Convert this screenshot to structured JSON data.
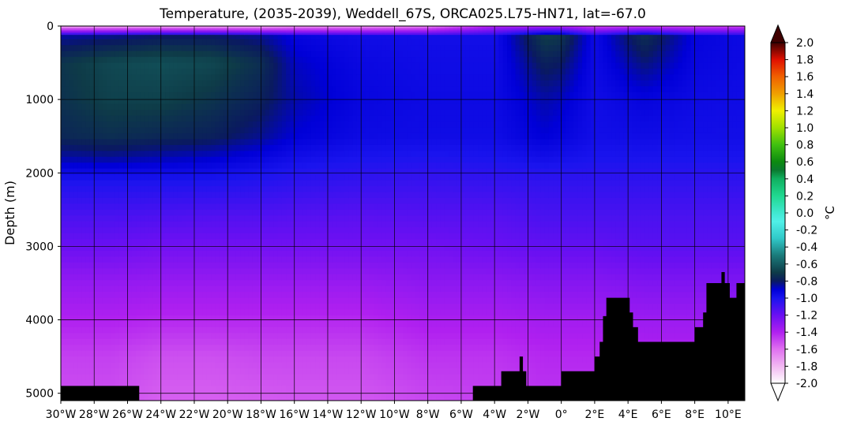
{
  "chart_data": {
    "type": "heatmap",
    "title": "Temperature, (2035-2039), Weddell_67S, ORCA025.L75-HN71, lat=-67.0",
    "xlabel": "",
    "ylabel": "Depth (m)",
    "colorbar_label": "°C",
    "xlim": [
      -30,
      11
    ],
    "ylim": [
      5100,
      0
    ],
    "y_inverted": true,
    "grid": true,
    "x_ticks": [
      {
        "value": -30,
        "label": "30°W"
      },
      {
        "value": -28,
        "label": "28°W"
      },
      {
        "value": -26,
        "label": "26°W"
      },
      {
        "value": -24,
        "label": "24°W"
      },
      {
        "value": -22,
        "label": "22°W"
      },
      {
        "value": -20,
        "label": "20°W"
      },
      {
        "value": -18,
        "label": "18°W"
      },
      {
        "value": -16,
        "label": "16°W"
      },
      {
        "value": -14,
        "label": "14°W"
      },
      {
        "value": -12,
        "label": "12°W"
      },
      {
        "value": -10,
        "label": "10°W"
      },
      {
        "value": -8,
        "label": "8°W"
      },
      {
        "value": -6,
        "label": "6°W"
      },
      {
        "value": -4,
        "label": "4°W"
      },
      {
        "value": -2,
        "label": "2°W"
      },
      {
        "value": 0,
        "label": "0°"
      },
      {
        "value": 2,
        "label": "2°E"
      },
      {
        "value": 4,
        "label": "4°E"
      },
      {
        "value": 6,
        "label": "6°E"
      },
      {
        "value": 8,
        "label": "8°E"
      },
      {
        "value": 10,
        "label": "10°E"
      }
    ],
    "y_ticks": [
      {
        "value": 0,
        "label": "0"
      },
      {
        "value": 1000,
        "label": "1000"
      },
      {
        "value": 2000,
        "label": "2000"
      },
      {
        "value": 3000,
        "label": "3000"
      },
      {
        "value": 4000,
        "label": "4000"
      },
      {
        "value": 5000,
        "label": "5000"
      }
    ],
    "colorbar": {
      "min": -2.0,
      "max": 2.0,
      "extend": "both",
      "ticks": [
        "2.0",
        "1.8",
        "1.6",
        "1.4",
        "1.2",
        "1.0",
        "0.8",
        "0.6",
        "0.4",
        "0.2",
        "0.0",
        "-0.2",
        "-0.4",
        "-0.6",
        "-0.8",
        "-1.0",
        "-1.2",
        "-1.4",
        "-1.6",
        "-1.8",
        "-2.0"
      ],
      "stops": [
        {
          "v": -2.0,
          "color": "#ffffff"
        },
        {
          "v": -1.8,
          "color": "#f2b8f2"
        },
        {
          "v": -1.6,
          "color": "#e070f0"
        },
        {
          "v": -1.4,
          "color": "#b020f0"
        },
        {
          "v": -1.2,
          "color": "#6a10f2"
        },
        {
          "v": -1.0,
          "color": "#1a14ee"
        },
        {
          "v": -0.9,
          "color": "#0000d8"
        },
        {
          "v": -0.8,
          "color": "#0a1a60"
        },
        {
          "v": -0.7,
          "color": "#0e3b48"
        },
        {
          "v": -0.5,
          "color": "#1a7a7a"
        },
        {
          "v": -0.3,
          "color": "#30c8c8"
        },
        {
          "v": -0.1,
          "color": "#50f0e8"
        },
        {
          "v": 0.0,
          "color": "#40e8d0"
        },
        {
          "v": 0.2,
          "color": "#20d890"
        },
        {
          "v": 0.4,
          "color": "#10b060"
        },
        {
          "v": 0.5,
          "color": "#0a7a30"
        },
        {
          "v": 0.6,
          "color": "#0c8a10"
        },
        {
          "v": 0.8,
          "color": "#40c010"
        },
        {
          "v": 1.0,
          "color": "#a0e000"
        },
        {
          "v": 1.2,
          "color": "#f0f000"
        },
        {
          "v": 1.4,
          "color": "#f0a000"
        },
        {
          "v": 1.6,
          "color": "#f06000"
        },
        {
          "v": 1.8,
          "color": "#e01000"
        },
        {
          "v": 2.0,
          "color": "#400000"
        }
      ]
    },
    "depth_levels": [
      0,
      150,
      500,
      1000,
      1500,
      1800,
      2100,
      2600,
      3000,
      3500,
      4000,
      4500,
      5100
    ],
    "temperature_profiles": [
      {
        "x": -30,
        "t": [
          -1.75,
          -0.85,
          -0.72,
          -0.73,
          -0.76,
          -0.86,
          -1.0,
          -1.12,
          -1.2,
          -1.32,
          -1.4,
          -1.48,
          -1.52
        ]
      },
      {
        "x": -27,
        "t": [
          -1.75,
          -0.83,
          -0.66,
          -0.68,
          -0.74,
          -0.85,
          -1.0,
          -1.12,
          -1.2,
          -1.32,
          -1.4,
          -1.48,
          -1.52
        ]
      },
      {
        "x": -24,
        "t": [
          -1.75,
          -0.8,
          -0.64,
          -0.68,
          -0.76,
          -0.87,
          -1.0,
          -1.13,
          -1.22,
          -1.33,
          -1.42,
          -1.52,
          -1.56
        ]
      },
      {
        "x": -21,
        "t": [
          -1.75,
          -0.8,
          -0.66,
          -0.72,
          -0.78,
          -0.89,
          -1.0,
          -1.14,
          -1.22,
          -1.33,
          -1.42,
          -1.52,
          -1.56
        ]
      },
      {
        "x": -18,
        "t": [
          -1.75,
          -0.84,
          -0.74,
          -0.78,
          -0.84,
          -0.93,
          -1.02,
          -1.14,
          -1.22,
          -1.33,
          -1.42,
          -1.5,
          -1.55
        ]
      },
      {
        "x": -16,
        "t": [
          -1.7,
          -0.92,
          -0.88,
          -0.86,
          -0.9,
          -0.97,
          -1.04,
          -1.15,
          -1.22,
          -1.33,
          -1.42,
          -1.5,
          -1.54
        ]
      },
      {
        "x": -12,
        "t": [
          -1.7,
          -0.96,
          -0.94,
          -0.93,
          -0.95,
          -1.0,
          -1.06,
          -1.16,
          -1.22,
          -1.33,
          -1.42,
          -1.5,
          -1.54
        ]
      },
      {
        "x": -8,
        "t": [
          -1.65,
          -0.97,
          -0.96,
          -0.95,
          -0.96,
          -1.01,
          -1.07,
          -1.15,
          -1.22,
          -1.3,
          -1.38,
          -1.45,
          -1.5
        ]
      },
      {
        "x": -4,
        "t": [
          -1.4,
          -0.97,
          -0.96,
          -0.95,
          -0.96,
          -1.0,
          -1.06,
          -1.15,
          -1.2,
          -1.3,
          -1.38,
          -1.45,
          -1.48
        ]
      },
      {
        "x": -1,
        "t": [
          -1.4,
          -0.7,
          -0.78,
          -0.86,
          -0.9,
          -0.97,
          -1.05,
          -1.12,
          -1.18,
          -1.28,
          -1.36,
          -1.42,
          -1.45
        ]
      },
      {
        "x": 0,
        "t": [
          -1.4,
          -0.72,
          -0.8,
          -0.88,
          -0.92,
          -0.98,
          -1.05,
          -1.12,
          -1.18,
          -1.28,
          -1.36,
          -1.42,
          -1.45
        ]
      },
      {
        "x": 2,
        "t": [
          -1.5,
          -0.95,
          -0.95,
          -0.96,
          -0.97,
          -1.0,
          -1.05,
          -1.12,
          -1.18,
          -1.28,
          -1.36,
          -1.42,
          -1.45
        ]
      },
      {
        "x": 5,
        "t": [
          -1.5,
          -0.74,
          -0.82,
          -0.92,
          -0.96,
          -1.0,
          -1.05,
          -1.12,
          -1.16,
          -1.26,
          -1.34,
          -1.4,
          -1.42
        ]
      },
      {
        "x": 8,
        "t": [
          -1.5,
          -0.92,
          -0.93,
          -0.95,
          -0.97,
          -1.0,
          -1.05,
          -1.12,
          -1.16,
          -1.26,
          -1.34,
          -1.4,
          -1.42
        ]
      },
      {
        "x": 11,
        "t": [
          -1.5,
          -0.95,
          -0.95,
          -0.96,
          -0.97,
          -1.0,
          -1.05,
          -1.12,
          -1.16,
          -1.26,
          -1.34,
          -1.4,
          -1.42
        ]
      }
    ],
    "bathymetry": [
      [
        -30,
        4900
      ],
      [
        -25.3,
        4900
      ],
      [
        -25.3,
        5100
      ],
      [
        -5.3,
        5100
      ],
      [
        -5.3,
        4900
      ],
      [
        -3.6,
        4900
      ],
      [
        -3.6,
        4700
      ],
      [
        -2.5,
        4700
      ],
      [
        -2.5,
        4500
      ],
      [
        -2.3,
        4500
      ],
      [
        -2.3,
        4700
      ],
      [
        -2.1,
        4700
      ],
      [
        -2.1,
        4900
      ],
      [
        0,
        4900
      ],
      [
        0,
        4700
      ],
      [
        2,
        4700
      ],
      [
        2,
        4500
      ],
      [
        2.3,
        4500
      ],
      [
        2.3,
        4300
      ],
      [
        2.5,
        4300
      ],
      [
        2.5,
        3950
      ],
      [
        2.7,
        3950
      ],
      [
        2.7,
        3700
      ],
      [
        4.1,
        3700
      ],
      [
        4.1,
        3900
      ],
      [
        4.3,
        3900
      ],
      [
        4.3,
        4100
      ],
      [
        4.6,
        4100
      ],
      [
        4.6,
        4300
      ],
      [
        8,
        4300
      ],
      [
        8,
        4100
      ],
      [
        8.5,
        4100
      ],
      [
        8.5,
        3900
      ],
      [
        8.7,
        3900
      ],
      [
        8.7,
        3500
      ],
      [
        9.6,
        3500
      ],
      [
        9.6,
        3350
      ],
      [
        9.8,
        3350
      ],
      [
        9.8,
        3500
      ],
      [
        10.1,
        3500
      ],
      [
        10.1,
        3700
      ],
      [
        10.5,
        3700
      ],
      [
        10.5,
        3500
      ],
      [
        11,
        3500
      ],
      [
        11,
        5100
      ],
      [
        -30,
        5100
      ]
    ]
  }
}
